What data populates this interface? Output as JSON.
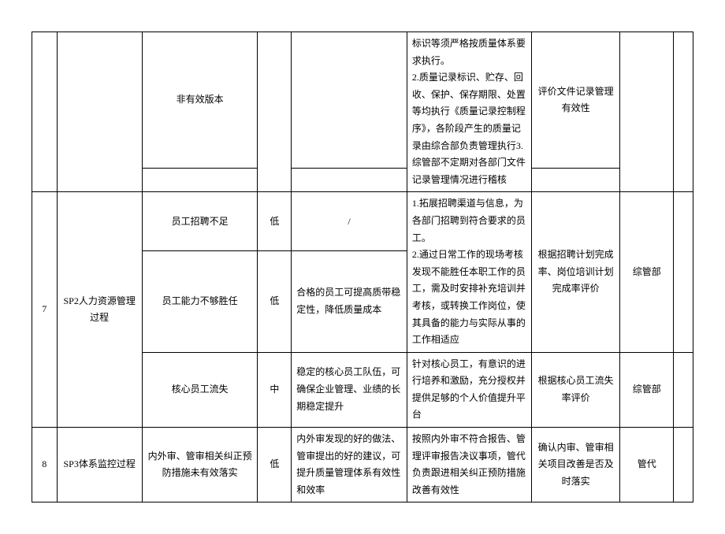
{
  "row1": {
    "risk": "非有效版本",
    "eval": "评价文件记录管理有效性"
  },
  "row1b": {
    "measure": "标识等须严格按质量体系要求执行。\n2.质量记录标识、贮存、回收、保护、保存期限、处置等均执行《质量记录控制程序》，各阶段产生的质量记录由综合部负责管理执行3.综管部不定期对各部门文件记录管理情况进行稽核"
  },
  "row2": {
    "num": "7",
    "process": "SP2人力资源管理过程",
    "risk_a": "员工招聘不足",
    "level_a": "低",
    "opp_a": "/",
    "measure_a": "1.拓展招聘渠道与信息，为各部门招聘到符合要求的员工。\n2.通过日常工作的现场考核发现不能胜任本职工作的员工，需及时安排补充培训并考核，或转换工作岗位，使其具备的能力与实际从事的工作相适应",
    "eval_a": "根据招聘计划完成率、岗位培训计划完成率评价",
    "dept_a": "综管部",
    "risk_b": "员工能力不够胜任",
    "level_b": "低",
    "opp_b": "合格的员工可提高质带稳定性，降低质量成本",
    "risk_c": "核心员工流失",
    "level_c": "中",
    "opp_c": "稳定的核心员工队伍，可确保企业管理、业绩的长期稳定提升",
    "measure_c": "针对核心员工，有意识的进行培养和激励，充分授权并提供足够的个人价值提升平台",
    "eval_c": "根据核心员工流失率评价",
    "dept_c": "综管部"
  },
  "row3": {
    "num": "8",
    "process": "SP3体系监控过程",
    "risk": "内外审、管审相关纠正预防措施未有效落实",
    "level": "低",
    "opp": "内外审发现的好的做法、管审提出的好的建议，可提升质量管理体系有效性和效率",
    "measure": "按照内外审不符合报告、管理评审报告决议事项，管代负责跟进相关纠正预防措施改善有效性",
    "eval": "确认内审、管审相关项目改善是否及时落实",
    "dept": "管代"
  }
}
